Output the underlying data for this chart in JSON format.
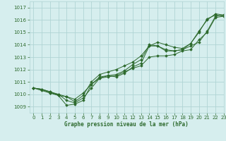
{
  "xlabel": "Graphe pression niveau de la mer (hPa)",
  "xlim": [
    -0.5,
    23
  ],
  "ylim": [
    1008.5,
    1017.5
  ],
  "yticks": [
    1009,
    1010,
    1011,
    1012,
    1013,
    1014,
    1015,
    1016,
    1017
  ],
  "xticks": [
    0,
    1,
    2,
    3,
    4,
    5,
    6,
    7,
    8,
    9,
    10,
    11,
    12,
    13,
    14,
    15,
    16,
    17,
    18,
    19,
    20,
    21,
    22,
    23
  ],
  "bg_color": "#d6eeee",
  "grid_color": "#b0d4d4",
  "line_color": "#2d6a2d",
  "series": [
    [
      1010.5,
      1010.4,
      1010.2,
      1009.9,
      1009.1,
      1009.2,
      1009.5,
      1010.8,
      1011.4,
      1011.5,
      1011.4,
      1011.7,
      1012.2,
      1012.5,
      1013.9,
      1013.9,
      1013.5,
      1013.5,
      1013.6,
      1014.1,
      1015.0,
      1016.1,
      1016.4,
      1016.3
    ],
    [
      1010.5,
      1010.4,
      1010.1,
      1010.0,
      1009.5,
      1009.3,
      1009.7,
      1010.5,
      1011.3,
      1011.4,
      1011.5,
      1011.8,
      1012.1,
      1012.3,
      1013.0,
      1013.1,
      1013.1,
      1013.2,
      1013.5,
      1013.6,
      1014.4,
      1015.0,
      1016.2,
      1016.3
    ],
    [
      1010.5,
      1010.4,
      1010.2,
      1010.0,
      1009.8,
      1009.4,
      1009.9,
      1011.0,
      1011.6,
      1011.8,
      1012.0,
      1012.3,
      1012.6,
      1013.1,
      1013.9,
      1014.2,
      1014.0,
      1013.8,
      1013.7,
      1014.1,
      1015.1,
      1016.0,
      1016.5,
      1016.4
    ],
    [
      1010.5,
      1010.3,
      1010.1,
      1009.9,
      1009.8,
      1009.6,
      1010.1,
      1010.8,
      1011.3,
      1011.5,
      1011.6,
      1011.9,
      1012.4,
      1012.8,
      1014.0,
      1013.9,
      1013.6,
      1013.5,
      1013.6,
      1013.9,
      1014.2,
      1015.1,
      1016.3,
      1016.4
    ]
  ]
}
